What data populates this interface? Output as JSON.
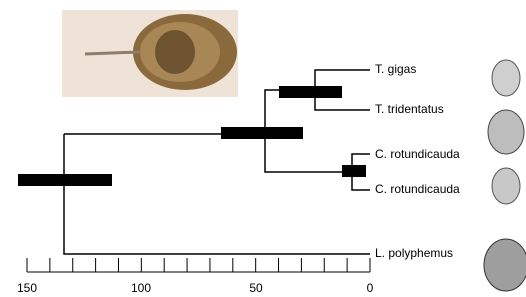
{
  "taxa": [
    "T. gigas",
    "T. tridentatus",
    "C. rotundicauda",
    "C. rotundicauda",
    "L. polyphemus"
  ],
  "axis": {
    "tick_labels": [
      "150",
      "100",
      "50",
      "0"
    ]
  }
}
